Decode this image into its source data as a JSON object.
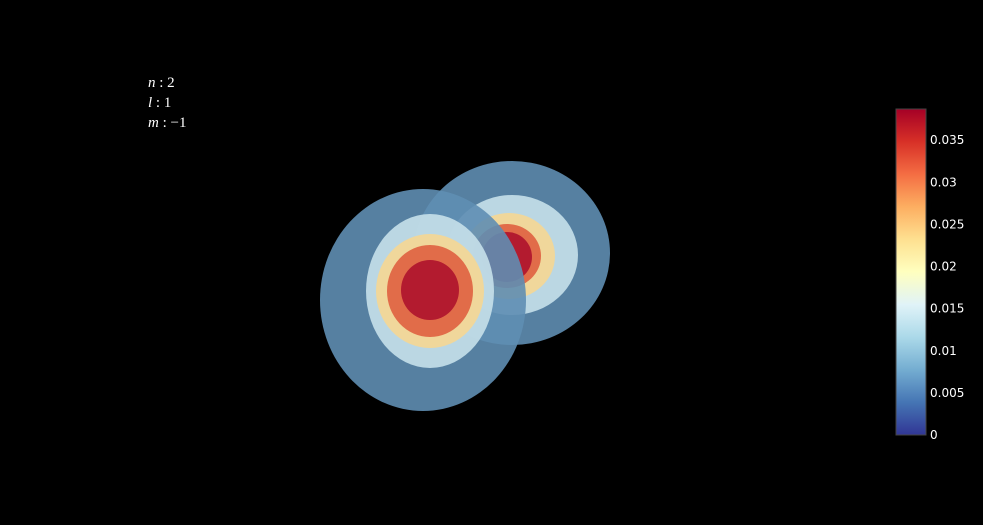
{
  "quantum_numbers": [
    {
      "symbol": "n",
      "separator": " : ",
      "value": "2"
    },
    {
      "symbol": "l",
      "separator": " : ",
      "value": "1"
    },
    {
      "symbol": "m",
      "separator": " : ",
      "value": "−1"
    }
  ],
  "chart_data": {
    "type": "isosurface",
    "title": "",
    "background": "#000000",
    "colorscale": "RdYlBu (reversed)",
    "colorscale_stops": [
      "#313695",
      "#4575b4",
      "#74add1",
      "#abd9e9",
      "#e0f3f8",
      "#ffffbf",
      "#fee090",
      "#fdae61",
      "#f46d43",
      "#d73027",
      "#a50026"
    ],
    "colorbar": {
      "range": [
        0,
        0.0387
      ],
      "tick_values": [
        0,
        0.005,
        0.01,
        0.015,
        0.02,
        0.025,
        0.03,
        0.035
      ],
      "tick_labels": [
        "0",
        "0.005",
        "0.01",
        "0.015",
        "0.02",
        "0.025",
        "0.03",
        "0.035"
      ]
    },
    "lobes": [
      {
        "name": "",
        "shells": [
          {
            "value": 0.007,
            "color": "#5f8eb2"
          },
          {
            "value": 0.013,
            "color": "#c7e0ea"
          },
          {
            "value": 0.021,
            "color": "#f4d795"
          },
          {
            "value": 0.029,
            "color": "#df6645"
          },
          {
            "value": 0.037,
            "color": "#b2192e"
          }
        ]
      },
      {
        "name": "",
        "shells": [
          {
            "value": 0.007,
            "color": "#5f8eb2"
          },
          {
            "value": 0.013,
            "color": "#c7e0ea"
          },
          {
            "value": 0.021,
            "color": "#f4d795"
          },
          {
            "value": 0.029,
            "color": "#df6645"
          },
          {
            "value": 0.037,
            "color": "#b2192e"
          }
        ]
      }
    ]
  }
}
